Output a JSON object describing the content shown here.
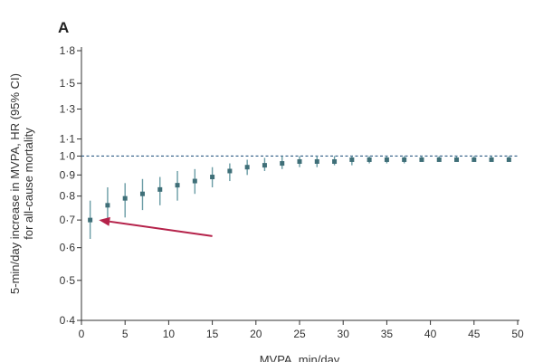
{
  "chart_data": {
    "type": "scatter",
    "panel_label": "A",
    "xlabel": "MVPA, min/day",
    "ylabel_line1": "5-min/day increase in MVPA, HR (95% CI)",
    "ylabel_line2": "for all-cause mortality",
    "xlim": [
      0,
      50
    ],
    "ylim": [
      0.4,
      1.8
    ],
    "y_scale": "log",
    "x_ticks": [
      {
        "v": 0,
        "label": "0"
      },
      {
        "v": 5,
        "label": "5"
      },
      {
        "v": 10,
        "label": "10"
      },
      {
        "v": 15,
        "label": "15"
      },
      {
        "v": 20,
        "label": "20"
      },
      {
        "v": 25,
        "label": "25"
      },
      {
        "v": 30,
        "label": "30"
      },
      {
        "v": 35,
        "label": "35"
      },
      {
        "v": 40,
        "label": "40"
      },
      {
        "v": 45,
        "label": "45"
      },
      {
        "v": 50,
        "label": "50"
      }
    ],
    "y_ticks": [
      {
        "v": 0.4,
        "label": "0·4"
      },
      {
        "v": 0.5,
        "label": "0·5"
      },
      {
        "v": 0.6,
        "label": "0·6"
      },
      {
        "v": 0.7,
        "label": "0·7"
      },
      {
        "v": 0.8,
        "label": "0·8"
      },
      {
        "v": 0.9,
        "label": "0·9"
      },
      {
        "v": 1.0,
        "label": "1·0"
      },
      {
        "v": 1.1,
        "label": "1·1"
      },
      {
        "v": 1.3,
        "label": "1·3"
      },
      {
        "v": 1.5,
        "label": "1·5"
      },
      {
        "v": 1.8,
        "label": "1·8"
      }
    ],
    "reference_line": 1.0,
    "points": [
      {
        "x": 1,
        "y": 0.7,
        "lo": 0.63,
        "hi": 0.78
      },
      {
        "x": 3,
        "y": 0.76,
        "lo": 0.69,
        "hi": 0.84
      },
      {
        "x": 5,
        "y": 0.79,
        "lo": 0.71,
        "hi": 0.86
      },
      {
        "x": 7,
        "y": 0.81,
        "lo": 0.74,
        "hi": 0.88
      },
      {
        "x": 9,
        "y": 0.83,
        "lo": 0.76,
        "hi": 0.89
      },
      {
        "x": 11,
        "y": 0.85,
        "lo": 0.78,
        "hi": 0.92
      },
      {
        "x": 13,
        "y": 0.87,
        "lo": 0.81,
        "hi": 0.93
      },
      {
        "x": 15,
        "y": 0.89,
        "lo": 0.84,
        "hi": 0.94
      },
      {
        "x": 17,
        "y": 0.92,
        "lo": 0.87,
        "hi": 0.96
      },
      {
        "x": 19,
        "y": 0.94,
        "lo": 0.9,
        "hi": 0.98
      },
      {
        "x": 21,
        "y": 0.95,
        "lo": 0.92,
        "hi": 0.99
      },
      {
        "x": 23,
        "y": 0.96,
        "lo": 0.93,
        "hi": 1.0
      },
      {
        "x": 25,
        "y": 0.97,
        "lo": 0.94,
        "hi": 1.0
      },
      {
        "x": 27,
        "y": 0.97,
        "lo": 0.94,
        "hi": 1.0
      },
      {
        "x": 29,
        "y": 0.97,
        "lo": 0.95,
        "hi": 1.0
      },
      {
        "x": 31,
        "y": 0.98,
        "lo": 0.95,
        "hi": 1.0
      },
      {
        "x": 33,
        "y": 0.98,
        "lo": 0.96,
        "hi": 1.0
      },
      {
        "x": 35,
        "y": 0.98,
        "lo": 0.96,
        "hi": 1.0
      },
      {
        "x": 37,
        "y": 0.98,
        "lo": 0.96,
        "hi": 1.0
      },
      {
        "x": 39,
        "y": 0.98,
        "lo": 0.97,
        "hi": 1.0
      },
      {
        "x": 41,
        "y": 0.98,
        "lo": 0.97,
        "hi": 1.0
      },
      {
        "x": 43,
        "y": 0.98,
        "lo": 0.97,
        "hi": 1.0
      },
      {
        "x": 45,
        "y": 0.98,
        "lo": 0.97,
        "hi": 1.0
      },
      {
        "x": 47,
        "y": 0.98,
        "lo": 0.97,
        "hi": 1.0
      },
      {
        "x": 49,
        "y": 0.98,
        "lo": 0.97,
        "hi": 1.0
      }
    ],
    "annotation_arrow": {
      "from": {
        "x": 15,
        "y": 0.64
      },
      "to": {
        "x": 2,
        "y": 0.7
      }
    },
    "colors": {
      "point": "#3f6f78",
      "errorbar": "#6a9ca5",
      "reference": "#2f5d85",
      "arrow": "#b5224a",
      "axis": "#333333"
    }
  }
}
